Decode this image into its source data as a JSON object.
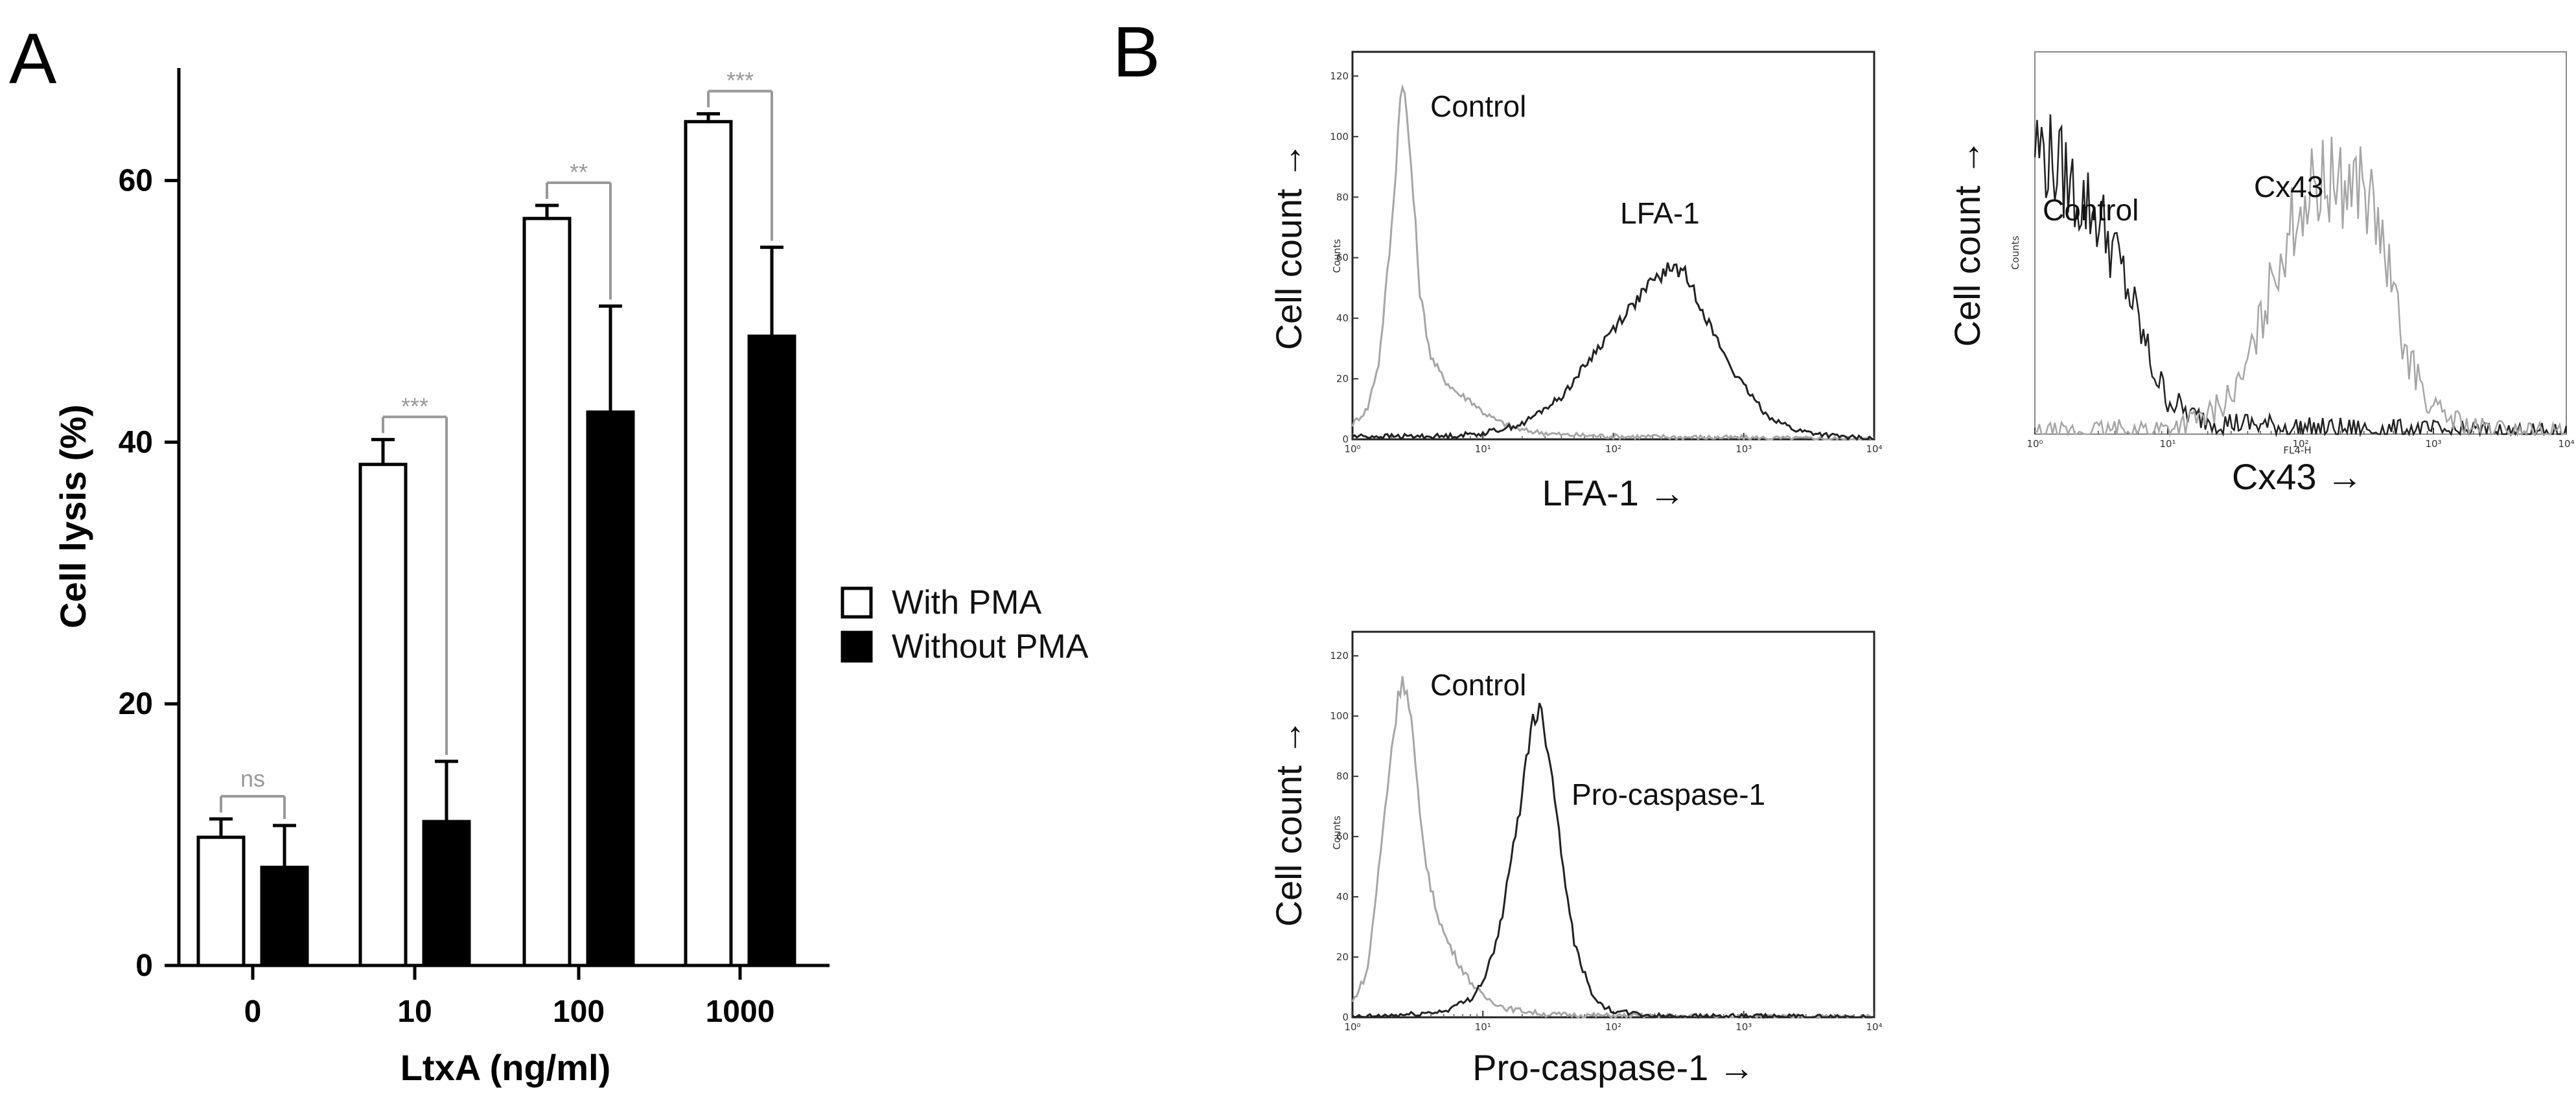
{
  "panel_a_letter": "A",
  "panel_b_letter": "B",
  "chart_data": [
    {
      "type": "bar",
      "title": "",
      "xlabel": "LtxA (ng/ml)",
      "ylabel": "Cell lysis (%)",
      "ylim": [
        0,
        70
      ],
      "yticks": [
        "0",
        "20",
        "40",
        "60"
      ],
      "categories": [
        "0",
        "10",
        "100",
        "1000"
      ],
      "series": [
        {
          "name": "With PMA",
          "values": [
            9.8,
            38.3,
            57.1,
            64.5
          ],
          "errors": [
            1.4,
            1.9,
            1.0,
            0.6
          ],
          "fill": "#ffffff"
        },
        {
          "name": "Without PMA",
          "values": [
            7.5,
            11.0,
            42.3,
            48.1
          ],
          "errors": [
            3.2,
            4.6,
            8.1,
            6.8
          ],
          "fill": "#000000"
        }
      ],
      "significance": [
        "ns",
        "***",
        "**",
        "***"
      ],
      "legend_position": "right"
    },
    {
      "type": "line",
      "title": "",
      "xlabel": "LFA-1 →",
      "ylabel": "Cell count →",
      "inner_ylabel": "Counts",
      "xscale": "log",
      "xlim": [
        1,
        10000
      ],
      "xticks": [
        "10⁰",
        "10¹",
        "10²",
        "10³",
        "10⁴"
      ],
      "ylim": [
        0,
        128
      ],
      "yticks": [
        "0",
        "20",
        "40",
        "60",
        "80",
        "100",
        "120"
      ],
      "series": [
        {
          "name": "Control",
          "color": "#a6a6a6",
          "x": [
            1,
            1.3,
            1.6,
            2,
            2.4,
            2.8,
            3.3,
            4,
            5,
            6.5,
            8,
            10,
            13,
            20,
            40,
            100,
            1000,
            10000
          ],
          "y": [
            5,
            10,
            26,
            70,
            122,
            92,
            48,
            27,
            20,
            15,
            13,
            9,
            6,
            3,
            1.5,
            1,
            0.5,
            0
          ]
        },
        {
          "name": "LFA-1",
          "color": "#222222",
          "x": [
            1,
            5,
            10,
            20,
            40,
            70,
            120,
            200,
            280,
            350,
            450,
            600,
            900,
            1500,
            2500,
            5000,
            10000
          ],
          "y": [
            1,
            1,
            2,
            5,
            14,
            28,
            41,
            52,
            57,
            55,
            46,
            34,
            20,
            8,
            3,
            1,
            0
          ]
        }
      ]
    },
    {
      "type": "line",
      "title": "",
      "xlabel": "Cx43 →",
      "ylabel": "Cell count →",
      "inner_ylabel": "Counts",
      "inner_xlabel": "FL4-H",
      "xscale": "log",
      "xlim": [
        1,
        10000
      ],
      "xticks": [
        "10⁰",
        "10¹",
        "10²",
        "10³",
        "10⁴"
      ],
      "ylim": [
        0,
        63
      ],
      "series": [
        {
          "name": "Control",
          "color": "#222222",
          "x": [
            1,
            1.5,
            2,
            3,
            4,
            5,
            6.5,
            8,
            10,
            15,
            25,
            50,
            100,
            1000,
            10000
          ],
          "y": [
            48,
            44,
            40,
            36,
            30,
            24,
            16,
            10,
            6,
            3,
            2,
            1.5,
            1,
            0.5,
            0
          ]
        },
        {
          "name": "Cx43",
          "color": "#a6a6a6",
          "x": [
            1,
            10,
            20,
            35,
            50,
            70,
            100,
            150,
            200,
            280,
            350,
            450,
            600,
            1000,
            2000,
            10000
          ],
          "y": [
            0,
            1,
            3,
            8,
            18,
            30,
            38,
            42,
            41,
            42,
            37,
            28,
            14,
            4,
            1,
            0
          ]
        }
      ]
    },
    {
      "type": "line",
      "title": "",
      "xlabel": "Pro-caspase-1 →",
      "ylabel": "Cell count →",
      "inner_ylabel": "Counts",
      "xscale": "log",
      "xlim": [
        1,
        10000
      ],
      "xticks": [
        "10⁰",
        "10¹",
        "10²",
        "10³",
        "10⁴"
      ],
      "ylim": [
        0,
        128
      ],
      "yticks": [
        "0",
        "20",
        "40",
        "60",
        "80",
        "100",
        "120"
      ],
      "series": [
        {
          "name": "Control",
          "color": "#a6a6a6",
          "x": [
            1,
            1.3,
            1.6,
            2,
            2.4,
            2.8,
            3.3,
            4,
            5,
            6.5,
            8,
            10,
            15,
            30,
            100,
            10000
          ],
          "y": [
            5,
            15,
            50,
            90,
            115,
            100,
            65,
            42,
            28,
            18,
            12,
            7,
            3,
            1,
            0.5,
            0
          ]
        },
        {
          "name": "Pro-caspase-1",
          "color": "#222222",
          "x": [
            1,
            3,
            5,
            8,
            10,
            13,
            16,
            20,
            24,
            28,
            33,
            40,
            50,
            65,
            80,
            100,
            200,
            10000
          ],
          "y": [
            0,
            1,
            2,
            6,
            12,
            26,
            48,
            75,
            100,
            102,
            85,
            55,
            25,
            10,
            4,
            2,
            0.5,
            0
          ]
        }
      ]
    }
  ]
}
